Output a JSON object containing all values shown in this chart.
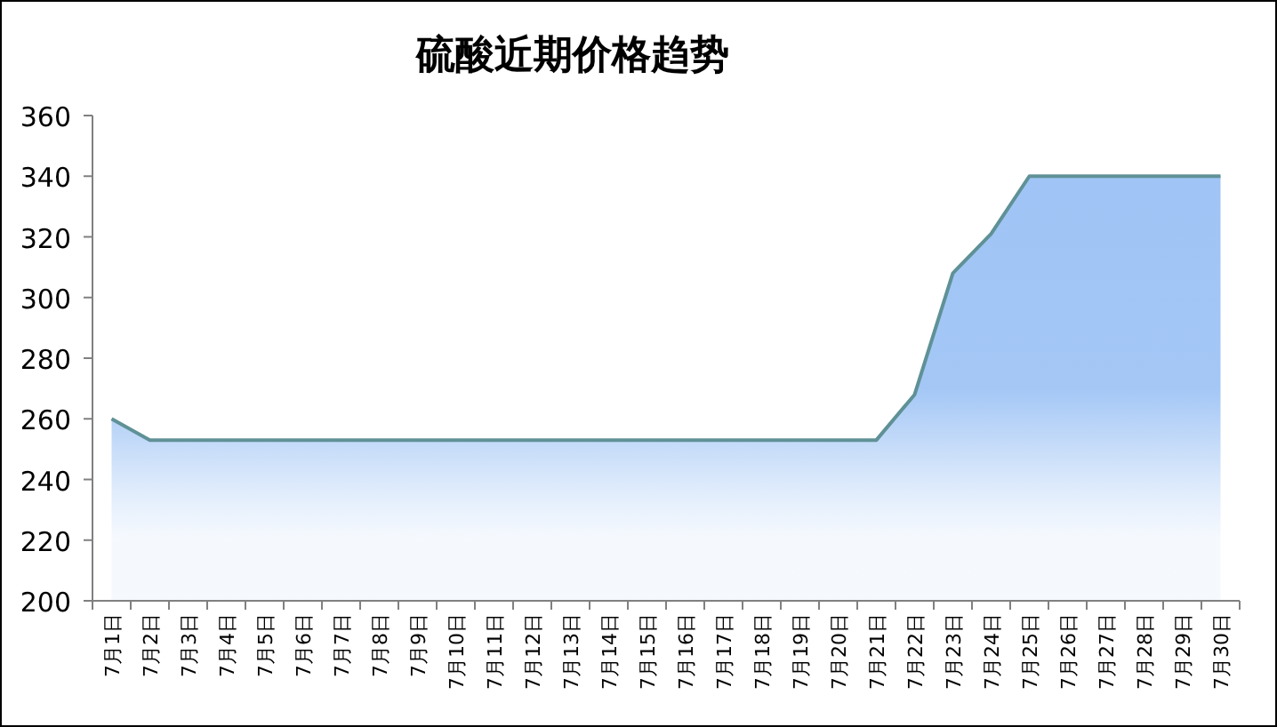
{
  "chart_data": {
    "type": "area",
    "title": "硫酸近期价格趋势",
    "categories": [
      "7月1日",
      "7月2日",
      "7月3日",
      "7月4日",
      "7月5日",
      "7月6日",
      "7月7日",
      "7月8日",
      "7月9日",
      "7月10日",
      "7月11日",
      "7月12日",
      "7月13日",
      "7月14日",
      "7月15日",
      "7月16日",
      "7月17日",
      "7月18日",
      "7月19日",
      "7月20日",
      "7月21日",
      "7月22日",
      "7月23日",
      "7月24日",
      "7月25日",
      "7月26日",
      "7月27日",
      "7月28日",
      "7月29日",
      "7月30日"
    ],
    "series": [
      {
        "color": "#9fc4f5",
        "values": [
          260,
          253,
          253,
          253,
          253,
          253,
          253,
          253,
          253,
          253,
          253,
          253,
          253,
          253,
          253,
          253,
          253,
          253,
          253,
          253,
          253,
          268,
          308,
          321,
          340,
          340,
          340,
          340,
          340,
          340
        ]
      }
    ],
    "ylim": [
      200,
      360
    ],
    "yticks": [
      200,
      220,
      240,
      260,
      280,
      300,
      320,
      340,
      360
    ],
    "grid": false
  }
}
